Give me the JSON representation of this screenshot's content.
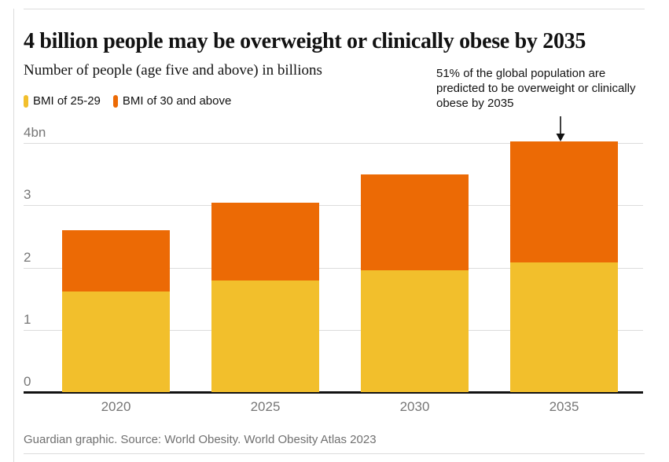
{
  "header": {
    "title": "4 billion people may be overweight or clinically obese by 2035"
  },
  "chart": {
    "subtitle": "Number of people (age five and above) in billions",
    "annotation": "51% of the global population are predicted to be overweight or clinically obese by 2035"
  },
  "legend": {
    "items": [
      {
        "label": "BMI of 25-29",
        "color": "#f2bf2c"
      },
      {
        "label": "BMI of 30 and above",
        "color": "#ec6a05"
      }
    ]
  },
  "footer": {
    "credit": "Guardian graphic. Source: World Obesity. World Obesity Atlas 2023"
  },
  "colors": {
    "overweight_yellow": "#f2bf2c",
    "obese_orange": "#ec6a05",
    "gridline": "#dcdcdc",
    "axis_text": "#767676",
    "dark_text": "#121212",
    "baseline": "#121212"
  },
  "chart_data": {
    "type": "bar",
    "stacked": true,
    "title": "4 billion people may be overweight or clinically obese by 2035",
    "subtitle": "Number of people (age five and above) in billions",
    "categories": [
      "2020",
      "2025",
      "2030",
      "2035"
    ],
    "series": [
      {
        "name": "BMI of 25-29",
        "color": "#f2bf2c",
        "values": [
          1.61,
          1.79,
          1.95,
          2.08
        ]
      },
      {
        "name": "BMI of 30 and above",
        "color": "#ec6a05",
        "values": [
          0.99,
          1.25,
          1.55,
          1.94
        ]
      }
    ],
    "totals": [
      2.6,
      3.04,
      3.5,
      4.02
    ],
    "xlabel": "",
    "ylabel": "Number of people (age five and above) in billions",
    "ylim": [
      0,
      4
    ],
    "ytick_values": [
      0,
      1,
      2,
      3,
      4
    ],
    "ytick_labels": [
      "0",
      "1",
      "2",
      "3",
      "4bn"
    ],
    "grid": true,
    "legend_position": "top-left",
    "annotation": {
      "text": "51% of the global population are predicted to be overweight or clinically obese by 2035",
      "target_category": "2035"
    }
  }
}
